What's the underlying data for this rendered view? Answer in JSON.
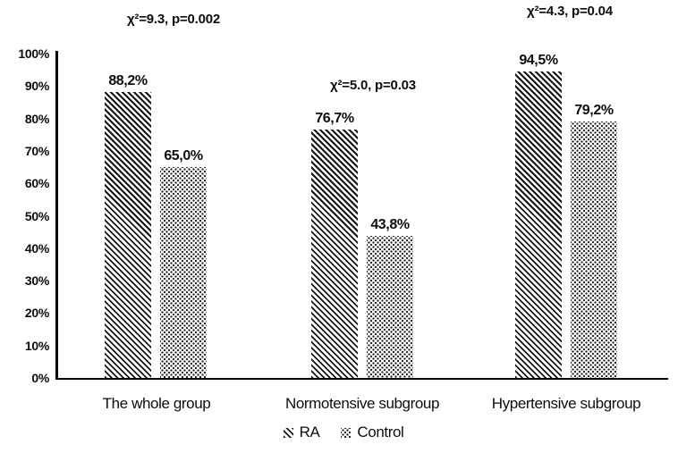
{
  "chart_data": {
    "type": "bar",
    "title": "",
    "xlabel": "",
    "ylabel": "",
    "categories": [
      "The whole group",
      "Normotensive subgroup",
      "Hypertensive subgroup"
    ],
    "series": [
      {
        "name": "RA",
        "pattern": "diagonal-hatch",
        "values": [
          88.2,
          76.7,
          94.5
        ],
        "value_labels": [
          "88,2%",
          "76,7%",
          "94,5%"
        ]
      },
      {
        "name": "Control",
        "pattern": "dot-grid",
        "values": [
          65.0,
          43.8,
          79.2
        ],
        "value_labels": [
          "65,0%",
          "43,8%",
          "79,2%"
        ]
      }
    ],
    "annotations": [
      {
        "text": "χ²=9.3, p=0.002",
        "group": "The whole group"
      },
      {
        "text": "χ²=5.0, p=0.03",
        "group": "Normotensive subgroup"
      },
      {
        "text": "χ²=4.3, p=0.04",
        "group": "Hypertensive subgroup"
      }
    ],
    "y_axis": {
      "min": 0,
      "max": 100,
      "tick_step": 10,
      "ticks": [
        "100%",
        "90%",
        "80%",
        "70%",
        "60%",
        "50%",
        "40%",
        "30%",
        "20%",
        "10%",
        "0%"
      ]
    },
    "grid": false,
    "legend": {
      "position": "bottom",
      "entries": [
        "RA",
        "Control"
      ]
    },
    "colors": {
      "foreground": "#000000",
      "background": "#ffffff"
    }
  }
}
